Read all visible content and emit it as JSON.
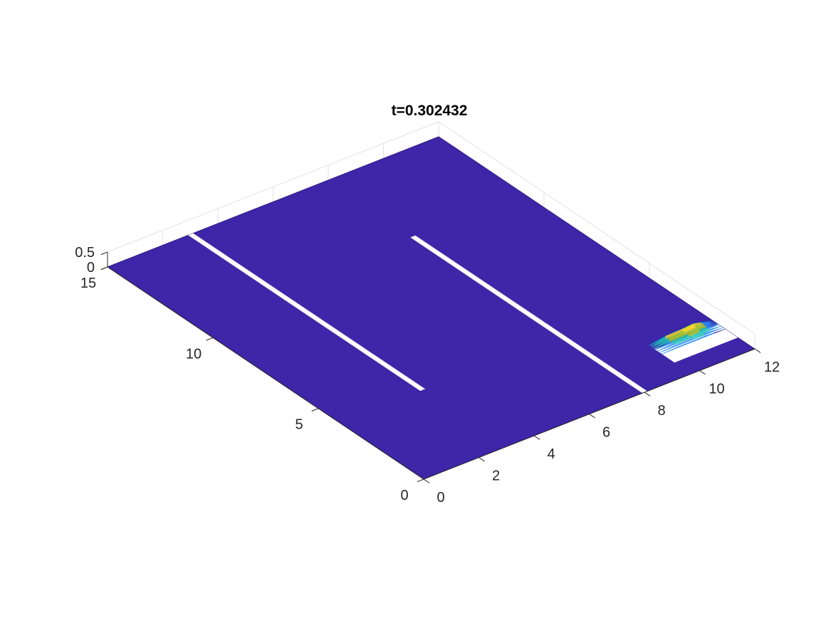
{
  "chart_data": {
    "type": "surface",
    "title": "t=0.302432",
    "xlabel": "",
    "ylabel": "",
    "zlabel": "",
    "grid": true,
    "xlim": [
      0,
      12
    ],
    "ylim": [
      0,
      15
    ],
    "zlim": [
      0,
      0.5
    ],
    "x_ticks": [
      0,
      2,
      4,
      6,
      8,
      10,
      12
    ],
    "y_ticks": [
      0,
      5,
      10,
      15
    ],
    "z_ticks": [
      0,
      0.5
    ],
    "x_tick_labels": [
      "0",
      "2",
      "4",
      "6",
      "8",
      "10",
      "12"
    ],
    "y_tick_labels": [
      "0",
      "5",
      "10",
      "15"
    ],
    "z_tick_labels": [
      "0",
      "0.5"
    ],
    "baseline_value": 0,
    "surface_color": "#3d26a8",
    "walls": [
      {
        "x": [
          2.93,
          3.1
        ],
        "y": [
          4,
          15
        ]
      },
      {
        "x": [
          7.93,
          8.1
        ],
        "y": [
          0,
          11
        ]
      }
    ],
    "wave_profile": {
      "y": 2.0,
      "x": [
        9.7,
        10.3,
        10.9,
        11.3,
        11.6,
        12.0
      ],
      "z": [
        0.02,
        0.12,
        0.14,
        0.17,
        0.1,
        0.0
      ]
    },
    "colormap": [
      "#3d26a8",
      "#2d8cf4",
      "#1fbfb8",
      "#a6c92f",
      "#fcd234",
      "#f9fb0e"
    ]
  }
}
